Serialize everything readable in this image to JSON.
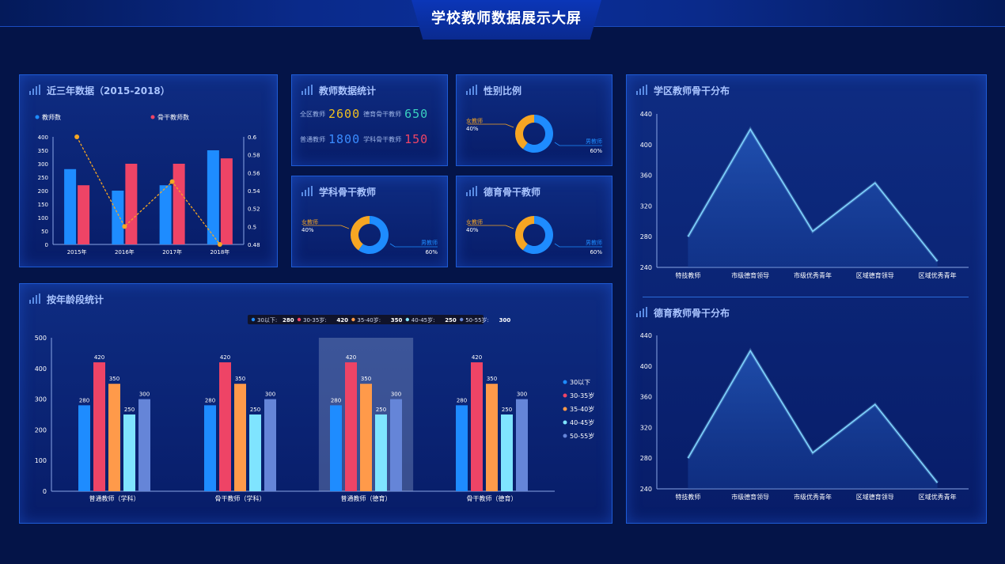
{
  "header": {
    "title": "学校教师数据展示大屏"
  },
  "colors": {
    "blue": "#1e8cff",
    "red": "#ee4466",
    "orange": "#ff9a4a",
    "cyan": "#7fe4ff",
    "slate": "#6585d8",
    "yellow": "#f6a623",
    "teal": "#3ad0c0",
    "line": "#f5a623"
  },
  "panels": {
    "three_year": {
      "title": "近三年数据（2015-2018）"
    },
    "teacher_stats": {
      "title": "教师数据统计",
      "items": [
        {
          "label": "全区教师",
          "value": "2600",
          "color": "#f0c020"
        },
        {
          "label": "德育骨干教师",
          "value": "650",
          "color": "#3ad0c0"
        },
        {
          "label": "普通教师",
          "value": "1800",
          "color": "#3a8cff"
        },
        {
          "label": "学科骨干教师",
          "value": "150",
          "color": "#ee4466"
        }
      ]
    },
    "gender": {
      "title": "性别比例"
    },
    "subject_backbone": {
      "title": "学科骨干教师"
    },
    "moral_backbone": {
      "title": "德育骨干教师"
    },
    "age": {
      "title": "按年龄段统计"
    },
    "district_backbone": {
      "title": "学区教师骨干分布"
    },
    "moral_distribution": {
      "title": "德育教师骨干分布"
    }
  },
  "chart_data": [
    {
      "id": "three_year",
      "type": "bar",
      "categories": [
        "2015年",
        "2016年",
        "2017年",
        "2018年"
      ],
      "series": [
        {
          "name": "教师数",
          "values": [
            280,
            200,
            220,
            350
          ],
          "color": "#1e8cff"
        },
        {
          "name": "骨干教师数",
          "values": [
            220,
            300,
            300,
            320
          ],
          "color": "#ee4466"
        },
        {
          "name": "",
          "type": "line",
          "axis": "right",
          "values": [
            0.6,
            0.5,
            0.55,
            0.48
          ],
          "color": "#f5a623"
        }
      ],
      "ylim": [
        0,
        400
      ],
      "yticks": [
        "0",
        "50",
        "100",
        "150",
        "200",
        "250",
        "300",
        "350",
        "400"
      ],
      "ylim_right": [
        0.48,
        0.6
      ],
      "yticks_right": [
        "0.48",
        "0.5",
        "0.52",
        "0.54",
        "0.56",
        "0.58",
        "0.6"
      ],
      "legend": "top"
    },
    {
      "id": "gender",
      "type": "pie",
      "slices": [
        {
          "name": "女教师",
          "value": 40,
          "label": "40%",
          "color": "#f6a623"
        },
        {
          "name": "男教师",
          "value": 60,
          "label": "60%",
          "color": "#1e8cff"
        }
      ]
    },
    {
      "id": "subject_backbone",
      "type": "pie",
      "slices": [
        {
          "name": "女教师",
          "value": 40,
          "label": "40%",
          "color": "#f6a623"
        },
        {
          "name": "男教师",
          "value": 60,
          "label": "60%",
          "color": "#1e8cff"
        }
      ]
    },
    {
      "id": "moral_backbone",
      "type": "pie",
      "slices": [
        {
          "name": "女教师",
          "value": 40,
          "label": "40%",
          "color": "#f6a623"
        },
        {
          "name": "男教师",
          "value": 60,
          "label": "60%",
          "color": "#1e8cff"
        }
      ]
    },
    {
      "id": "age",
      "type": "bar",
      "categories": [
        "普通教师（学科）",
        "骨干教师（学科）",
        "普通教师（德育）",
        "骨干教师（德育）"
      ],
      "series": [
        {
          "name": "30以下",
          "values": [
            280,
            280,
            280,
            280
          ],
          "color": "#1e8cff"
        },
        {
          "name": "30-35岁",
          "values": [
            420,
            420,
            420,
            420
          ],
          "color": "#ee4466"
        },
        {
          "name": "35-40岁",
          "values": [
            350,
            350,
            350,
            350
          ],
          "color": "#ff9a4a"
        },
        {
          "name": "40-45岁",
          "values": [
            250,
            250,
            250,
            250
          ],
          "color": "#7fe4ff"
        },
        {
          "name": "50-55岁",
          "values": [
            300,
            300,
            300,
            300
          ],
          "color": "#6585d8"
        }
      ],
      "ylim": [
        0,
        500
      ],
      "yticks": [
        "0",
        "100",
        "200",
        "300",
        "400",
        "500"
      ],
      "highlight_category": 2,
      "tooltip": [
        {
          "name": "30以下",
          "value": "280"
        },
        {
          "name": "30-35岁",
          "value": "420"
        },
        {
          "name": "35-40岁",
          "value": "350"
        },
        {
          "name": "40-45岁",
          "value": "250"
        },
        {
          "name": "50-55岁",
          "value": "300"
        }
      ],
      "legend": "right"
    },
    {
      "id": "district_backbone",
      "type": "area",
      "categories": [
        "特技教师",
        "市级德育领导",
        "市级优秀青年",
        "区域德育领导",
        "区域优秀青年"
      ],
      "values": [
        280,
        420,
        287,
        350,
        248
      ],
      "ylim": [
        240,
        440
      ],
      "yticks": [
        "240",
        "280",
        "320",
        "360",
        "400",
        "440"
      ]
    },
    {
      "id": "moral_distribution",
      "type": "area",
      "categories": [
        "特技教师",
        "市级德育领导",
        "市级优秀青年",
        "区域德育领导",
        "区域优秀青年"
      ],
      "values": [
        280,
        420,
        287,
        350,
        248
      ],
      "ylim": [
        240,
        440
      ],
      "yticks": [
        "240",
        "280",
        "320",
        "360",
        "400",
        "440"
      ]
    }
  ]
}
